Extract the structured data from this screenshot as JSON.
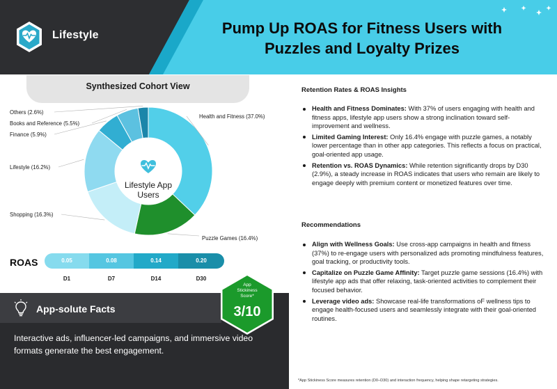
{
  "header": {
    "brand": "Lifestyle",
    "title_line1": "Pump Up ROAS for Fitness Users with",
    "title_line2": "Puzzles and Loyalty Prizes"
  },
  "cohort": {
    "title": "Synthesized Cohort View",
    "center_line1": "Lifestyle App",
    "center_line2": "Users"
  },
  "chart_data": {
    "type": "pie",
    "title": "Synthesized Cohort View",
    "categories": [
      "Health and Fitness",
      "Puzzle Games",
      "Shopping",
      "Lifestyle",
      "Finance",
      "Books and Reference",
      "Others"
    ],
    "values": [
      37.0,
      16.4,
      16.3,
      16.2,
      5.9,
      5.5,
      2.6
    ],
    "labels": [
      "Health and Fitness (37.0%)",
      "Puzzle Games (16.4%)",
      "Shopping (16.3%)",
      "Lifestyle (16.2%)",
      "Finance (5.9%)",
      "Books and Reference (5.5%)",
      "Others (2.6%)"
    ],
    "colors": [
      "#52cfe9",
      "#1f8f2c",
      "#c4eef8",
      "#8fdaf0",
      "#31aed2",
      "#5cc1e0",
      "#1b86aa"
    ]
  },
  "roas": {
    "label": "ROAS",
    "values": [
      "0.05",
      "0.08",
      "0.14",
      "0.20"
    ],
    "days": [
      "D1",
      "D7",
      "D14",
      "D30"
    ]
  },
  "stickiness": {
    "line1": "App",
    "line2": "Stickiness",
    "line3": "Score*",
    "score": "3/10"
  },
  "facts": {
    "title": "App-solute Facts",
    "text": "Interactive ads, influencer-led campaigns, and immersive video formats generate the best engagement."
  },
  "insights": {
    "title": "Retention Rates & ROAS Insights",
    "items": [
      {
        "head": "Health and Fitness Dominates:",
        "body": " With 37% of users engaging with health and fitness apps, lifestyle app users show a strong inclination toward self-improvement and wellness."
      },
      {
        "head": "Limited Gaming Interest:",
        "body": " Only 16.4% engage with puzzle games, a notably lower percentage than in other app categories. This reflects a focus on practical, goal-oriented app usage."
      },
      {
        "head": "Retention vs. ROAS Dynamics:",
        "body": " While retention significantly drops by D30 (2.9%), a steady increase in ROAS indicates that users who remain are likely to engage deeply with premium content or monetized features over time."
      }
    ]
  },
  "recommendations": {
    "title": "Recommendations",
    "items": [
      {
        "head": "Align with Wellness Goals:",
        "body": " Use cross-app campaigns in health and fitness (37%) to re-engage users with personalized ads promoting mindfulness features, goal tracking, or productivity tools."
      },
      {
        "head": "Capitalize on Puzzle Game Affinity:",
        "body": " Target puzzle game sessions (16.4%) with lifestyle app ads that offer relaxing, task-oriented activities to complement their focused behavior."
      },
      {
        "head": "Leverage video ads:",
        "body": " Showcase real-life transformations oF wellness tips to engage health-focused users and seamlessly integrate with their goal-oriented routines."
      }
    ]
  },
  "footnote": "*App Stickiness Score measures retention (D0–D30) and interaction frequency, helping shape retargeting strategies.",
  "icons": [
    "heart-pulse-icon",
    "lightbulb-icon",
    "sparkle-icon"
  ]
}
